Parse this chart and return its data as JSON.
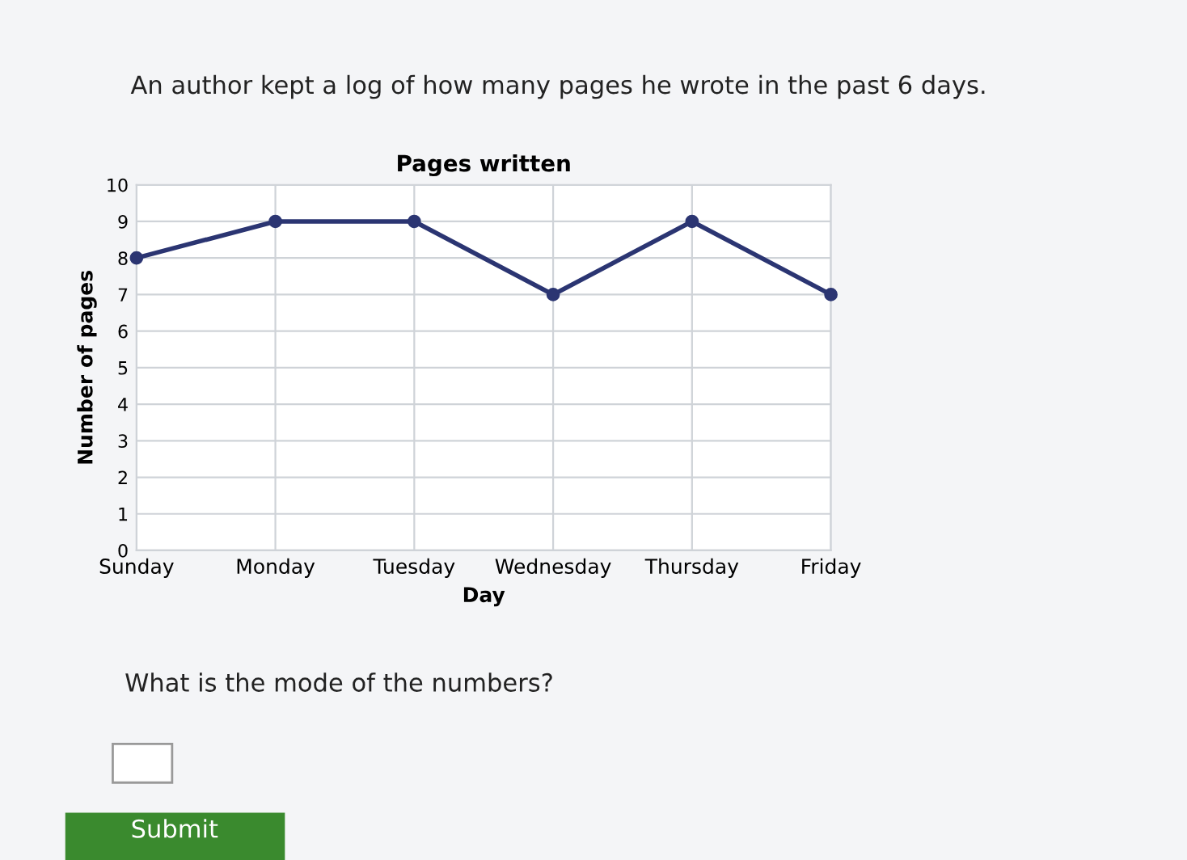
{
  "chart_data": {
    "type": "line",
    "title": "Pages written",
    "xlabel": "Day",
    "ylabel": "Number of pages",
    "categories": [
      "Sunday",
      "Monday",
      "Tuesday",
      "Wednesday",
      "Thursday",
      "Friday"
    ],
    "series": [
      {
        "color": "#2b3572",
        "values": [
          8,
          9,
          9,
          7,
          9,
          7
        ]
      }
    ],
    "ylim": [
      0,
      10
    ],
    "yticks": [
      0,
      1,
      2,
      3,
      4,
      5,
      6,
      7,
      8,
      9,
      10
    ],
    "grid": true,
    "marker": "circle",
    "line_style": "solid",
    "legend": false,
    "annotations": [
      "An author kept a log of how many pages he wrote in the past 6 days.",
      "What is the mode of the numbers?",
      "Submit"
    ]
  }
}
